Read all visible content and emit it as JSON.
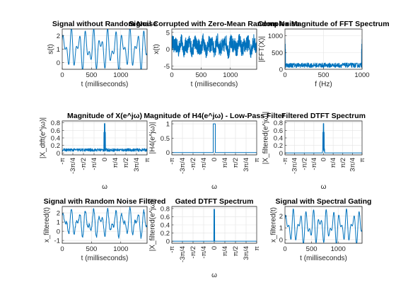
{
  "figure": {
    "background": "#ffffff",
    "line_color": "#0072bd",
    "grid": true
  },
  "chart_data": [
    {
      "id": "p1",
      "type": "line",
      "title": "Signal without Random Noise",
      "xlabel": "t (milliseconds)",
      "ylabel": "s(t)",
      "xlim": [
        0,
        1450
      ],
      "ylim": [
        -0.5,
        2.5
      ],
      "xticks": [
        0,
        500,
        1000
      ],
      "xticklabels": [
        "0",
        "500",
        "1000"
      ],
      "yticks": [
        0,
        1,
        2
      ],
      "yticklabels": [
        "0",
        "1",
        "2"
      ],
      "kind": "signal",
      "signal": {
        "offset": 1.0,
        "components": [
          [
            0.9,
            8.0,
            0.0
          ],
          [
            0.7,
            13.0,
            1.3
          ]
        ],
        "noise": 0
      }
    },
    {
      "id": "p2",
      "type": "line",
      "title": "Signal Corrupted with Zero-Mean Random Noise",
      "xlabel": "t (milliseconds)",
      "ylabel": "x(t)",
      "xlim": [
        0,
        1450
      ],
      "ylim": [
        -6,
        6
      ],
      "xticks": [
        0,
        500,
        1000
      ],
      "xticklabels": [
        "0",
        "500",
        "1000"
      ],
      "yticks": [
        -5,
        0,
        5
      ],
      "yticklabels": [
        "-5",
        "0",
        "5"
      ],
      "kind": "signal",
      "signal": {
        "offset": 1.0,
        "components": [
          [
            0.9,
            8.0,
            0.0
          ],
          [
            0.7,
            13.0,
            1.3
          ]
        ],
        "noise": 2.3
      }
    },
    {
      "id": "p3",
      "type": "line",
      "title": "Complex Magnitude of FFT Spectrum",
      "xlabel": "f (Hz)",
      "ylabel": "|FFT(X)|",
      "xlim": [
        0,
        1000
      ],
      "ylim": [
        0,
        1200
      ],
      "xticks": [
        0,
        500,
        1000
      ],
      "xticklabels": [
        "0",
        "500",
        "1000"
      ],
      "yticks": [
        0,
        500,
        1000
      ],
      "yticklabels": [
        "0",
        "500",
        "1000"
      ],
      "kind": "spectrum",
      "spectrum": {
        "floor": 120,
        "jitter": 70,
        "peaks": [
          [
            0,
            900
          ],
          [
            4,
            750
          ],
          [
            6,
            600
          ],
          [
            994,
            600
          ],
          [
            996,
            750
          ],
          [
            1000,
            900
          ]
        ]
      }
    },
    {
      "id": "p4",
      "type": "line",
      "title": "Magnitude of X(e^jω)",
      "xlabel": "ω",
      "ylabel": "|X_dtft(e^jω)|",
      "xlim": [
        -3.1416,
        3.1416
      ],
      "ylim": [
        -0.05,
        0.85
      ],
      "xticks": [
        -3.1416,
        -2.3562,
        -1.5708,
        -0.7854,
        0,
        0.7854,
        1.5708,
        2.3562,
        3.1416
      ],
      "xticklabels": [
        "-π",
        "-3π/4",
        "-π/2",
        "-π/4",
        "0",
        "π/4",
        "π/2",
        "3π/4",
        "π"
      ],
      "yticks": [
        0,
        0.2,
        0.4,
        0.6,
        0.8
      ],
      "yticklabels": [
        "0",
        "0.2",
        "0.4",
        "0.6",
        "0.8"
      ],
      "kind": "spectrum",
      "spectrum": {
        "floor": 0.08,
        "jitter": 0.04,
        "peaks": [
          [
            -0.05,
            0.55
          ],
          [
            -0.02,
            0.78
          ],
          [
            0.0,
            0.55
          ],
          [
            0.02,
            0.78
          ],
          [
            0.05,
            0.55
          ]
        ]
      }
    },
    {
      "id": "p5",
      "type": "line",
      "title": "Magnitude of H4(e^jω) - Low-Pass Filter",
      "xlabel": "ω",
      "ylabel": "|H4(e^jω)|",
      "xlim": [
        -3.1416,
        3.1416
      ],
      "ylim": [
        -0.08,
        1.1
      ],
      "xticks": [
        -3.1416,
        -2.3562,
        -1.5708,
        -0.7854,
        0,
        0.7854,
        1.5708,
        2.3562,
        3.1416
      ],
      "xticklabels": [
        "-π",
        "-3π/4",
        "-π/2",
        "-π/4",
        "0",
        "π/4",
        "π/2",
        "3π/4",
        "π"
      ],
      "yticks": [
        0,
        0.5,
        1
      ],
      "yticklabels": [
        "0",
        "0.5",
        "1"
      ],
      "kind": "box",
      "box": {
        "lo": -0.08,
        "hi": 0.08,
        "level": 1
      }
    },
    {
      "id": "p6",
      "type": "line",
      "title": "Filtered DTFT Spectrum",
      "xlabel": "ω",
      "ylabel": "|X_filtered(e^jω)|",
      "xlim": [
        -3.1416,
        3.1416
      ],
      "ylim": [
        -0.05,
        0.85
      ],
      "xticks": [
        -3.1416,
        -2.3562,
        -1.5708,
        -0.7854,
        0,
        0.7854,
        1.5708,
        2.3562,
        3.1416
      ],
      "xticklabels": [
        "-π",
        "-3π/4",
        "-π/2",
        "-π/4",
        "0",
        "π/4",
        "π/2",
        "3π/4",
        "π"
      ],
      "yticks": [
        0,
        0.2,
        0.4,
        0.6,
        0.8
      ],
      "yticklabels": [
        "0",
        "0.2",
        "0.4",
        "0.6",
        "0.8"
      ],
      "kind": "spectrum",
      "spectrum": {
        "floor": 0,
        "jitter": 0,
        "band": [
          -0.08,
          0.08
        ],
        "band_floor": 0.08,
        "band_jitter": 0.04,
        "peaks": [
          [
            -0.05,
            0.55
          ],
          [
            -0.02,
            0.78
          ],
          [
            0.0,
            0.55
          ],
          [
            0.02,
            0.78
          ],
          [
            0.05,
            0.55
          ]
        ]
      }
    },
    {
      "id": "p7",
      "type": "line",
      "title": "Signal with Random Noise Filtered",
      "xlabel": "t (milliseconds)",
      "ylabel": "x_filtered(t)",
      "xlim": [
        0,
        1450
      ],
      "ylim": [
        -1.3,
        2.7
      ],
      "xticks": [
        0,
        500,
        1000
      ],
      "xticklabels": [
        "0",
        "500",
        "1000"
      ],
      "yticks": [
        -1,
        0,
        1,
        2
      ],
      "yticklabels": [
        "-1",
        "0",
        "1",
        "2"
      ],
      "kind": "signal",
      "signal": {
        "offset": 0.9,
        "components": [
          [
            0.9,
            8.0,
            0.0
          ],
          [
            0.7,
            13.0,
            1.3
          ]
        ],
        "noise": 0.25,
        "smooth": true
      }
    },
    {
      "id": "p8",
      "type": "line",
      "title": "Gated DTFT Spectrum",
      "xlabel": "ω",
      "ylabel": "|X_filtered(e^jω)|",
      "xlim": [
        -3.1416,
        3.1416
      ],
      "ylim": [
        -0.05,
        0.85
      ],
      "xticks": [
        -3.1416,
        -2.3562,
        -1.5708,
        -0.7854,
        0,
        0.7854,
        1.5708,
        2.3562,
        3.1416
      ],
      "xticklabels": [
        "-π",
        "-3π/4",
        "-π/2",
        "-π/4",
        "0",
        "π/4",
        "π/2",
        "3π/4",
        "π"
      ],
      "yticks": [
        0,
        0.2,
        0.4,
        0.6,
        0.8
      ],
      "yticklabels": [
        "0",
        "0.2",
        "0.4",
        "0.6",
        "0.8"
      ],
      "kind": "spectrum",
      "spectrum": {
        "floor": 0,
        "jitter": 0,
        "peaks": [
          [
            -0.02,
            0.78
          ],
          [
            0.0,
            0.3
          ],
          [
            0.02,
            0.78
          ]
        ]
      }
    },
    {
      "id": "p9",
      "type": "line",
      "title": "Signal with Spectral Gating",
      "xlabel": "t (milliseconds)",
      "ylabel": "x_filtered(t)",
      "xlim": [
        0,
        1450
      ],
      "ylim": [
        -0.3,
        2.8
      ],
      "xticks": [
        0,
        500,
        1000
      ],
      "xticklabels": [
        "0",
        "500",
        "1000"
      ],
      "yticks": [
        0,
        1,
        2
      ],
      "yticklabels": [
        "0",
        "1",
        "2"
      ],
      "kind": "signal",
      "signal": {
        "offset": 1.1,
        "components": [
          [
            0.85,
            8.0,
            0.0
          ],
          [
            0.65,
            13.0,
            1.3
          ]
        ],
        "noise": 0
      }
    }
  ]
}
